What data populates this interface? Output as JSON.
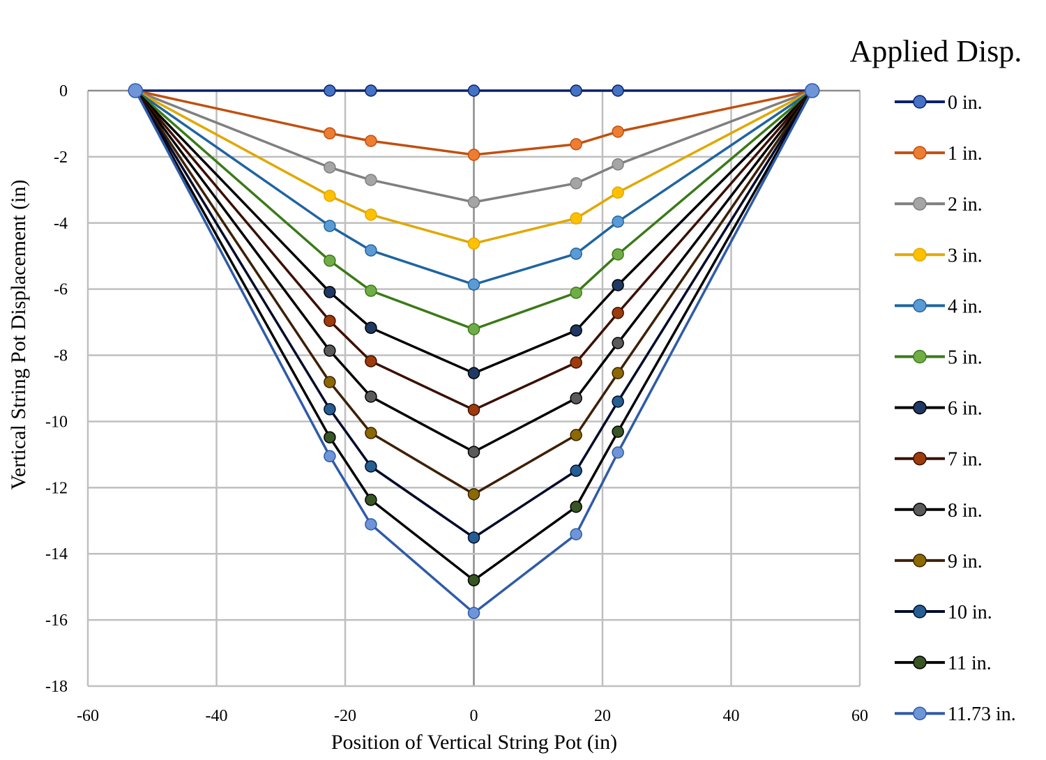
{
  "chart_data": {
    "type": "line",
    "title": "",
    "xlabel": "Position of Vertical String Pot (in)",
    "ylabel": "Vertical String Pot Displacement (in)",
    "xlim": [
      -60,
      60
    ],
    "ylim": [
      -18,
      0
    ],
    "x_ticks": [
      -60,
      -40,
      -20,
      0,
      20,
      40,
      60
    ],
    "y_ticks": [
      0,
      -2,
      -4,
      -6,
      -8,
      -10,
      -12,
      -14,
      -16,
      -18
    ],
    "x_tick_labels": [
      "-60",
      "-40",
      "-20",
      "0",
      "20",
      "40",
      "60"
    ],
    "y_tick_labels": [
      "0",
      "-2",
      "-4",
      "-6",
      "-8",
      "-10",
      "-12",
      "-14",
      "-16",
      "-18"
    ],
    "grid": true,
    "legend_title": "Applied Disp.",
    "legend_position": "right",
    "x": [
      -52.6,
      -22.4,
      -16.0,
      0,
      15.9,
      22.4,
      52.6
    ],
    "series": [
      {
        "name": "0 in.",
        "line_color": "#0b1f6b",
        "marker_color": "#4472c4",
        "values": [
          0,
          0,
          0,
          0,
          0,
          0,
          0
        ]
      },
      {
        "name": "1 in.",
        "line_color": "#c0500f",
        "marker_color": "#ed7d31",
        "values": [
          0,
          -1.29,
          -1.52,
          -1.94,
          -1.62,
          -1.24,
          0
        ]
      },
      {
        "name": "2 in.",
        "line_color": "#7f7f7f",
        "marker_color": "#a5a5a5",
        "values": [
          0,
          -2.32,
          -2.7,
          -3.37,
          -2.8,
          -2.23,
          0
        ]
      },
      {
        "name": "3 in.",
        "line_color": "#e0a800",
        "marker_color": "#ffc000",
        "values": [
          0,
          -3.18,
          -3.75,
          -4.62,
          -3.86,
          -3.08,
          0
        ]
      },
      {
        "name": "4 in.",
        "line_color": "#1f64a0",
        "marker_color": "#5b9bd5",
        "values": [
          0,
          -4.09,
          -4.83,
          -5.86,
          -4.93,
          -3.96,
          0
        ]
      },
      {
        "name": "5 in.",
        "line_color": "#3a7a18",
        "marker_color": "#70ad47",
        "values": [
          0,
          -5.14,
          -6.05,
          -7.21,
          -6.11,
          -4.95,
          0
        ]
      },
      {
        "name": "6 in.",
        "line_color": "#000000",
        "marker_color": "#1f3864",
        "values": [
          0,
          -6.09,
          -7.17,
          -8.54,
          -7.25,
          -5.88,
          0
        ]
      },
      {
        "name": "7 in.",
        "line_color": "#3b0f00",
        "marker_color": "#9e3b0b",
        "values": [
          0,
          -6.96,
          -8.18,
          -9.65,
          -8.22,
          -6.72,
          0
        ]
      },
      {
        "name": "8 in.",
        "line_color": "#000000",
        "marker_color": "#5a5a5a",
        "values": [
          0,
          -7.86,
          -9.25,
          -10.92,
          -9.3,
          -7.63,
          0
        ]
      },
      {
        "name": "9 in.",
        "line_color": "#3d2005",
        "marker_color": "#8a6a00",
        "values": [
          0,
          -8.81,
          -10.35,
          -12.2,
          -10.41,
          -8.54,
          0
        ]
      },
      {
        "name": "10 in.",
        "line_color": "#000a2a",
        "marker_color": "#255e91",
        "values": [
          0,
          -9.63,
          -11.36,
          -13.51,
          -11.49,
          -9.4,
          0
        ]
      },
      {
        "name": "11 in.",
        "line_color": "#000000",
        "marker_color": "#375623",
        "values": [
          0,
          -10.48,
          -12.37,
          -14.8,
          -12.58,
          -10.31,
          0
        ]
      },
      {
        "name": "11.73 in.",
        "line_color": "#2e5ba8",
        "marker_color": "#6f95d8",
        "values": [
          0,
          -11.05,
          -13.11,
          -15.79,
          -13.41,
          -10.94,
          0
        ]
      }
    ]
  },
  "colors": {
    "grid": "#bfbfbf",
    "zero_axis": "#8c8c8c",
    "background": "#ffffff"
  }
}
